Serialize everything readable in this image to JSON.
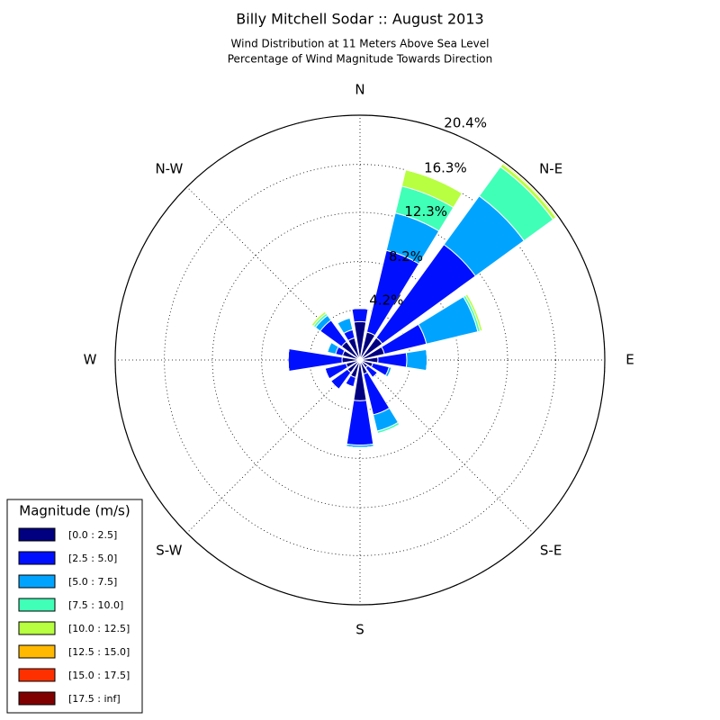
{
  "chart_data": {
    "type": "windrose",
    "title": "Billy Mitchell Sodar :: August 2013",
    "subtitle": [
      "Wind Distribution at 11 Meters Above Sea Level",
      "Percentage of Wind Magnitude Towards Direction"
    ],
    "categories": [
      "N",
      null,
      "N-E",
      null,
      "E",
      null,
      "S-E",
      null,
      "S",
      null,
      "S-W",
      null,
      "W",
      null,
      "N-W",
      null
    ],
    "ylim": [
      0,
      20.4
    ],
    "yticks": [
      {
        "value": 4.2,
        "label": "4.2%"
      },
      {
        "value": 8.2,
        "label": "8.2%"
      },
      {
        "value": 12.3,
        "label": "12.3%"
      },
      {
        "value": 16.3,
        "label": "16.3%"
      },
      {
        "value": 20.4,
        "label": "20.4%"
      }
    ],
    "grid": true,
    "legend_title": "Magnitude (m/s)",
    "legend": "lower left",
    "series": [
      {
        "name": "[0.0 : 2.5]",
        "color": "#000080",
        "values": [
          3.2,
          2.4,
          2.3,
          2.1,
          1.5,
          1.1,
          0.8,
          1.2,
          3.4,
          1.5,
          1.3,
          1.2,
          1.5,
          1.5,
          1.9,
          1.9
        ]
      },
      {
        "name": "[2.5 : 5.0]",
        "color": "#0010ff",
        "values": [
          1.1,
          7.0,
          9.6,
          3.6,
          2.4,
          1.4,
          1.0,
          3.5,
          3.7,
          0.8,
          1.7,
          1.8,
          4.5,
          0.6,
          2.2,
          0.7
        ]
      },
      {
        "name": "[5.0 : 7.5]",
        "color": "#00a4ff",
        "values": [
          0,
          3.2,
          5.0,
          4.4,
          1.7,
          0.2,
          0,
          1.4,
          0.2,
          0,
          0,
          0,
          0,
          0.7,
          0.5,
          1.0
        ]
      },
      {
        "name": "[7.5 : 10.0]",
        "color": "#40ffb7",
        "values": [
          0,
          2.3,
          3.0,
          0.2,
          0,
          0,
          0,
          0.2,
          0,
          0,
          0,
          0,
          0,
          0,
          0.2,
          0
        ]
      },
      {
        "name": "[10.0 : 12.5]",
        "color": "#b7ff40",
        "values": [
          0,
          1.4,
          0.3,
          0.2,
          0,
          0,
          0,
          0,
          0,
          0,
          0,
          0,
          0,
          0,
          0.2,
          0
        ]
      },
      {
        "name": "[12.5 : 15.0]",
        "color": "#ffb900",
        "values": [
          0,
          0,
          0.1,
          0,
          0,
          0,
          0,
          0,
          0,
          0,
          0,
          0,
          0,
          0,
          0,
          0
        ]
      },
      {
        "name": "[15.0 : 17.5]",
        "color": "#ff3000",
        "values": [
          0,
          0,
          0,
          0,
          0,
          0,
          0,
          0,
          0,
          0,
          0,
          0,
          0,
          0,
          0,
          0
        ]
      },
      {
        "name": "[17.5 : inf]",
        "color": "#800000",
        "values": [
          0,
          0,
          0,
          0,
          0,
          0,
          0,
          0,
          0,
          0,
          0,
          0,
          0,
          0,
          0,
          0
        ]
      }
    ]
  }
}
